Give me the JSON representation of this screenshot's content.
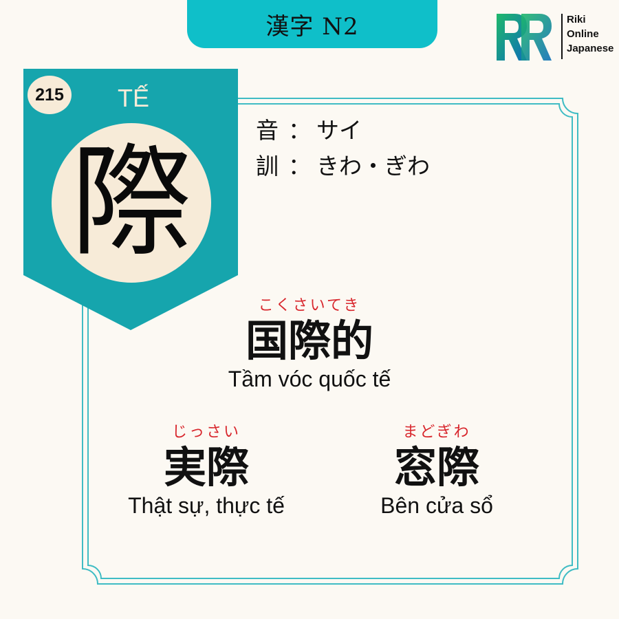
{
  "header": {
    "title": "漢字 N2"
  },
  "logo": {
    "line1": "Riki",
    "line2": "Online",
    "line3": "Japanese"
  },
  "kanji_card": {
    "number": "215",
    "sino_vietnamese": "TẾ",
    "kanji": "際"
  },
  "readings": {
    "on_label": "音",
    "on_value": "サイ",
    "kun_label": "訓",
    "kun_value": "きわ・ぎわ",
    "separator": "："
  },
  "vocabulary": [
    {
      "furigana": "こくさいてき",
      "word": "国際的",
      "meaning": "Tầm vóc quốc tế"
    },
    {
      "furigana": "じっさい",
      "word": "実際",
      "meaning": "Thật sự, thực tế"
    },
    {
      "furigana": "まどぎわ",
      "word": "窓際",
      "meaning": "Bên cửa sổ"
    }
  ],
  "colors": {
    "accent": "#0fbfc9",
    "banner": "#16a5ad",
    "cream": "#f7ebd8",
    "background": "#fcf9f3",
    "furigana": "#d8262c"
  }
}
